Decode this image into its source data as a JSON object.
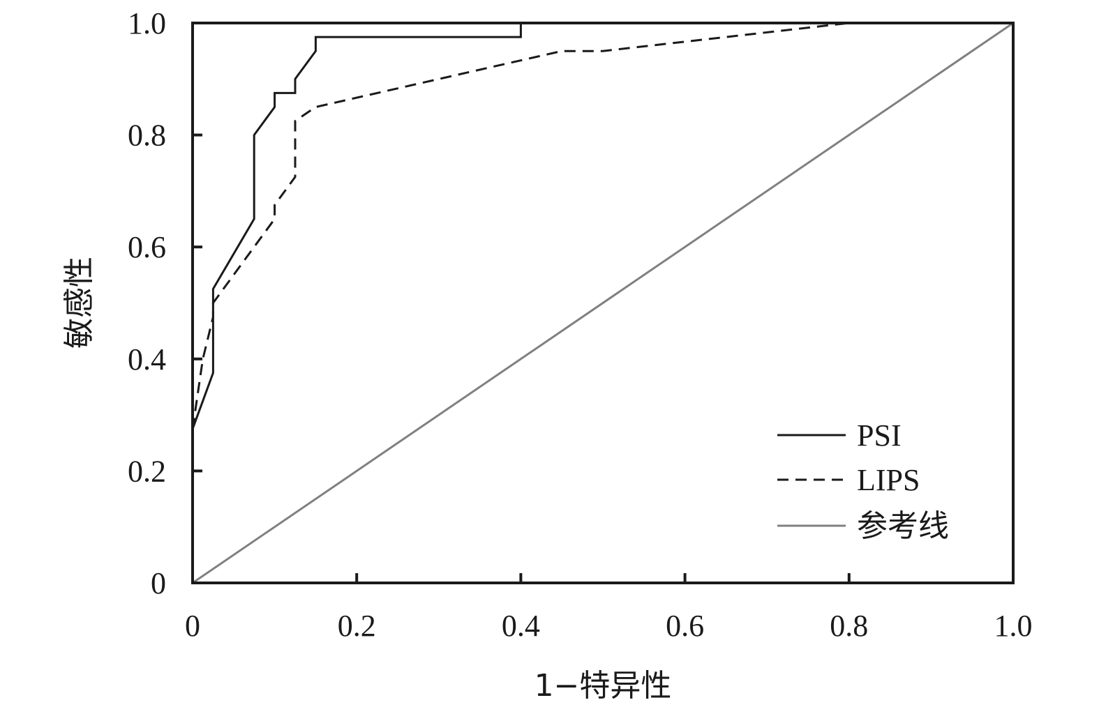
{
  "chart_data": {
    "type": "line",
    "xlabel": "1−特异性",
    "ylabel": "敏感性",
    "xlim": [
      0,
      1
    ],
    "ylim": [
      0,
      1
    ],
    "x_ticks": [
      {
        "value": 0,
        "label": "0"
      },
      {
        "value": 0.2,
        "label": "0.2"
      },
      {
        "value": 0.4,
        "label": "0.4"
      },
      {
        "value": 0.6,
        "label": "0.6"
      },
      {
        "value": 0.8,
        "label": "0.8"
      },
      {
        "value": 1.0,
        "label": "1.0"
      }
    ],
    "y_ticks": [
      {
        "value": 0,
        "label": "0"
      },
      {
        "value": 0.2,
        "label": "0.2"
      },
      {
        "value": 0.4,
        "label": "0.4"
      },
      {
        "value": 0.6,
        "label": "0.6"
      },
      {
        "value": 0.8,
        "label": "0.8"
      },
      {
        "value": 1.0,
        "label": "1.0"
      }
    ],
    "grid": false,
    "legend_position": "bottom-right",
    "series": [
      {
        "name": "PSI",
        "style": "solid",
        "color": "#1a1a1a",
        "points": [
          [
            0,
            0.275
          ],
          [
            0.025,
            0.375
          ],
          [
            0.025,
            0.525
          ],
          [
            0.075,
            0.65
          ],
          [
            0.075,
            0.8
          ],
          [
            0.1,
            0.85
          ],
          [
            0.1,
            0.875
          ],
          [
            0.125,
            0.875
          ],
          [
            0.125,
            0.9
          ],
          [
            0.15,
            0.95
          ],
          [
            0.15,
            0.975
          ],
          [
            0.4,
            0.975
          ],
          [
            0.4,
            1.0
          ],
          [
            1.0,
            1.0
          ]
        ]
      },
      {
        "name": "LIPS",
        "style": "dashed",
        "color": "#1a1a1a",
        "points": [
          [
            0,
            0.275
          ],
          [
            0.0125,
            0.4
          ],
          [
            0.025,
            0.475
          ],
          [
            0.025,
            0.5
          ],
          [
            0.1,
            0.65
          ],
          [
            0.1,
            0.675
          ],
          [
            0.125,
            0.725
          ],
          [
            0.125,
            0.825
          ],
          [
            0.15,
            0.85
          ],
          [
            0.45,
            0.95
          ],
          [
            0.5,
            0.95
          ],
          [
            0.8,
            1.0
          ],
          [
            1.0,
            1.0
          ]
        ]
      },
      {
        "name": "参考线",
        "style": "solid",
        "color": "#808080",
        "points": [
          [
            0,
            0
          ],
          [
            1,
            1
          ]
        ]
      }
    ]
  }
}
